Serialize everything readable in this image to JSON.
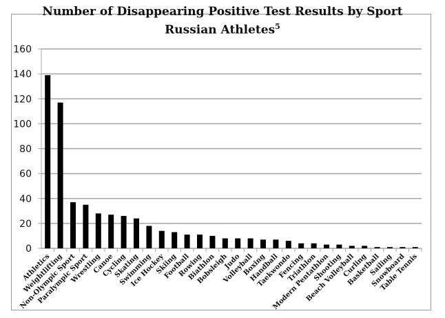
{
  "chart_data": {
    "type": "bar",
    "title": "Number of Disappearing Positive Test Results by Sport",
    "subtitle": "Russian Athletes",
    "subtitle_superscript": "5",
    "xlabel": "",
    "ylabel": "",
    "ylim": [
      0,
      160
    ],
    "yticks": [
      0,
      20,
      40,
      60,
      80,
      100,
      120,
      140,
      160
    ],
    "grid": true,
    "legend": "none",
    "bar_color": "#000000",
    "categories": [
      "Athletics",
      "Weightlifting",
      "Non-Olympic Sport",
      "Paralympic Sport",
      "Wrestling",
      "Canoe",
      "Cycling",
      "Skating",
      "Swimming",
      "Ice Hockey",
      "Skiing",
      "Football",
      "Rowing",
      "Biathlon",
      "Bobsleigh",
      "Judo",
      "Volleyball",
      "Boxing",
      "Handball",
      "Taekwondo",
      "Fencing",
      "Triathlon",
      "Modern Pentathlon",
      "Shooting",
      "Beach Volleyball",
      "Curling",
      "Basketball",
      "Sailing",
      "Snowboard",
      "Table Tennis"
    ],
    "values": [
      139,
      117,
      37,
      35,
      28,
      27,
      26,
      24,
      18,
      14,
      13,
      11,
      11,
      10,
      8,
      8,
      8,
      7,
      7,
      6,
      4,
      4,
      3,
      3,
      2,
      2,
      1,
      1,
      1,
      1
    ]
  }
}
